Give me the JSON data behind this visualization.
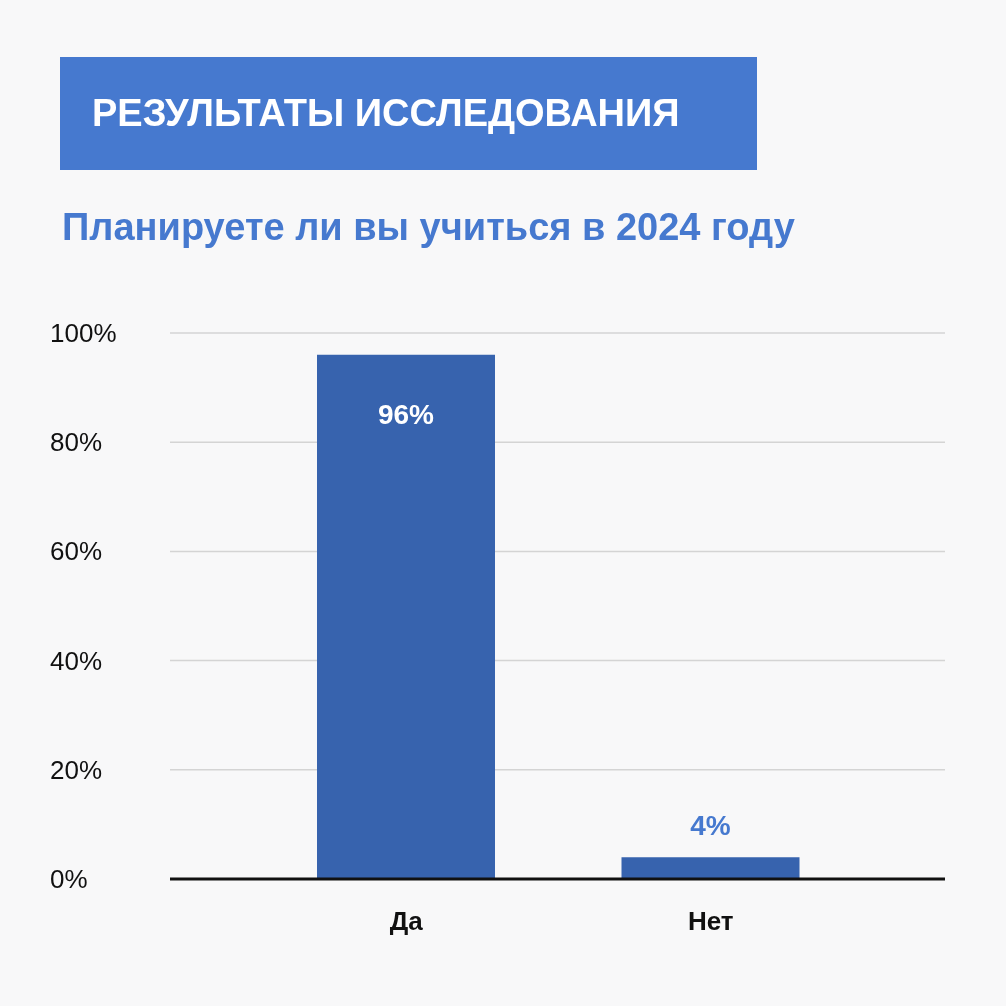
{
  "chart_data": {
    "type": "bar",
    "title": "РЕЗУЛЬТАТЫ ИССЛЕДОВАНИЯ",
    "subtitle": "Планируете ли вы учиться в 2024 году",
    "categories": [
      "Да",
      "Нет"
    ],
    "values": [
      96,
      4
    ],
    "color": "#3763ae",
    "value_labels": [
      "96%",
      "4%"
    ],
    "ylim": [
      0,
      100
    ],
    "yticks": [
      {
        "value": 0,
        "label": "0%"
      },
      {
        "value": 20,
        "label": "20%"
      },
      {
        "value": 40,
        "label": "40%"
      },
      {
        "value": 60,
        "label": "60%"
      },
      {
        "value": 80,
        "label": "80%"
      },
      {
        "value": 100,
        "label": "100%"
      }
    ],
    "grid": "y"
  }
}
